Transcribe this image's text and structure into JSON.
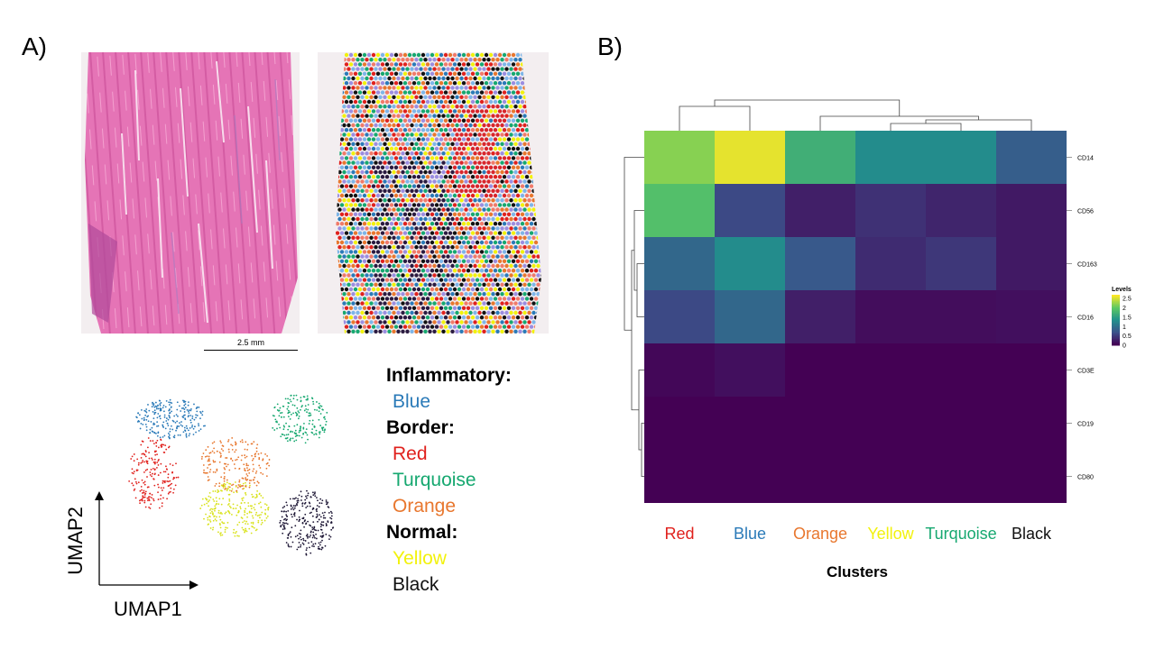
{
  "panels": {
    "a": "A)",
    "b": "B)"
  },
  "scalebar": "2.5 mm",
  "umap": {
    "xlabel": "UMAP1",
    "ylabel": "UMAP2"
  },
  "legend": {
    "groups": [
      {
        "title": "Inflammatory:",
        "entries": [
          {
            "label": "Blue",
            "color": "#2a7ab8"
          }
        ]
      },
      {
        "title": "Border:",
        "entries": [
          {
            "label": "Red",
            "color": "#e0211d"
          },
          {
            "label": "Turquoise",
            "color": "#16a870"
          },
          {
            "label": "Orange",
            "color": "#e8772e"
          }
        ]
      },
      {
        "title": "Normal:",
        "entries": [
          {
            "label": "Yellow",
            "color": "#f2f20c"
          },
          {
            "label": "Black",
            "color": "#111111"
          }
        ]
      }
    ]
  },
  "chart_data": {
    "type": "heatmap",
    "title": "",
    "xlabel": "Clusters",
    "ylabel": "",
    "columns": [
      "Red",
      "Blue",
      "Orange",
      "Yellow",
      "Turquoise",
      "Black"
    ],
    "column_colors": [
      "#e0211d",
      "#2a7ab8",
      "#e8772e",
      "#f2f20c",
      "#16a870",
      "#111111"
    ],
    "rows": [
      "CD14",
      "CD56",
      "CD163",
      "CD16",
      "CD3E",
      "CD19",
      "CD80"
    ],
    "values": [
      [
        2.2,
        2.6,
        1.7,
        1.3,
        1.3,
        0.8
      ],
      [
        1.9,
        0.6,
        0.25,
        0.4,
        0.3,
        0.2
      ],
      [
        0.9,
        1.3,
        0.75,
        0.35,
        0.45,
        0.2
      ],
      [
        0.6,
        0.9,
        0.25,
        0.1,
        0.1,
        0.12
      ],
      [
        0.05,
        0.12,
        0.0,
        0.0,
        0.0,
        0.0
      ],
      [
        0.0,
        0.0,
        0.0,
        0.0,
        0.0,
        0.0
      ],
      [
        0.0,
        0.0,
        0.0,
        0.0,
        0.0,
        0.0
      ]
    ],
    "colorbar": {
      "title": "Levels",
      "ticks": [
        "2.5",
        "2",
        "1.5",
        "1",
        "0.5",
        "0"
      ],
      "range": [
        0,
        2.7
      ]
    },
    "palette": "viridis"
  }
}
